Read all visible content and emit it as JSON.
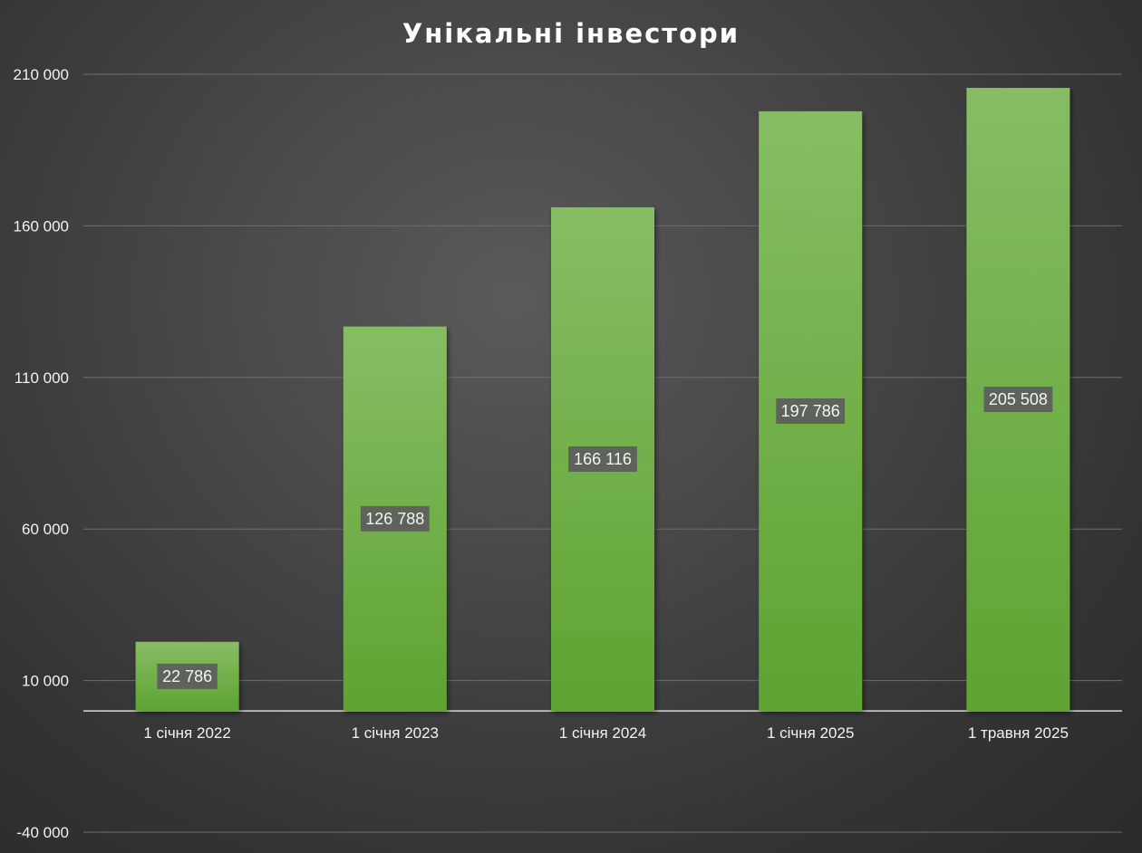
{
  "chart_data": {
    "type": "bar",
    "title": "Унікальні інвестори",
    "categories": [
      "1 січня 2022",
      "1 січня 2023",
      "1 січня 2024",
      "1 січня 2025",
      "1 травня 2025"
    ],
    "values": [
      22786,
      126788,
      166116,
      197786,
      205508
    ],
    "value_labels": [
      "22 786",
      "126 788",
      "166 116",
      "197 786",
      "205 508"
    ],
    "ylim": [
      -40000,
      210000
    ],
    "y_ticks": [
      -40000,
      10000,
      60000,
      110000,
      160000,
      210000
    ],
    "y_tick_labels": [
      "-40 000",
      "10 000",
      "60 000",
      "110 000",
      "160 000",
      "210 000"
    ],
    "baseline_value": 0,
    "grid": true,
    "legend": "none",
    "xlabel": "",
    "ylabel": "",
    "colors": {
      "bar_top": "#86bd64",
      "bar_bottom": "#5ea332",
      "label_bg": "#5c5c5c"
    }
  }
}
